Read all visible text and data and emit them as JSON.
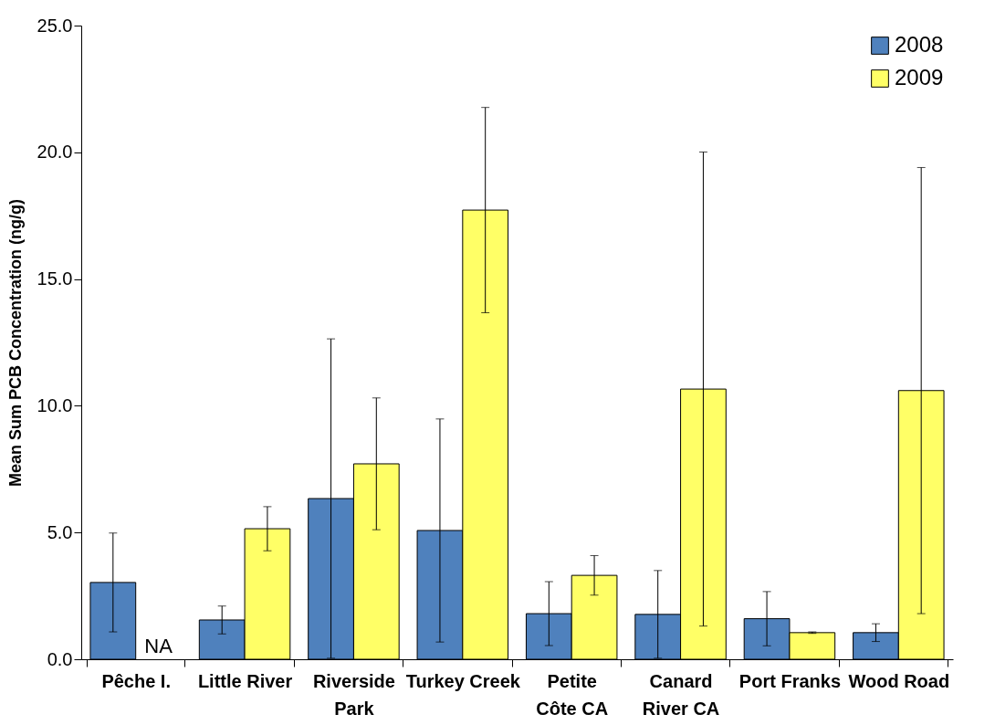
{
  "chart_data": {
    "type": "bar",
    "ylabel": "Mean Sum PCB Concentration (ng/g)",
    "categories": [
      "Pêche I.",
      "Little River",
      "Riverside Park",
      "Turkey Creek",
      "Petite Côte CA",
      "Canard River CA",
      "Port Franks",
      "Wood Road"
    ],
    "series": [
      {
        "name": "2008",
        "color": "#4f81bd",
        "values": [
          3.03,
          1.55,
          6.34,
          5.08,
          1.8,
          1.77,
          1.6,
          1.05
        ],
        "errors": [
          1.95,
          0.55,
          6.3,
          4.4,
          1.26,
          1.73,
          1.07,
          0.35
        ]
      },
      {
        "name": "2009",
        "color": "#ffff66",
        "values": [
          null,
          5.15,
          7.71,
          17.72,
          3.31,
          10.66,
          1.05,
          10.6
        ],
        "errors": [
          null,
          0.87,
          2.6,
          4.05,
          0.78,
          9.35,
          0.03,
          8.8
        ]
      }
    ],
    "ylim": [
      0,
      25
    ],
    "yticks": [
      {
        "value": 0,
        "label": "0.0"
      },
      {
        "value": 5,
        "label": "5.0"
      },
      {
        "value": 10,
        "label": "10.0"
      },
      {
        "value": 15,
        "label": "15.0"
      },
      {
        "value": 20,
        "label": "20.0"
      },
      {
        "value": 25,
        "label": "25.0"
      }
    ],
    "annotations": [
      {
        "text": "NA",
        "x": "Pêche I.",
        "y": 0
      }
    ],
    "legend": "top right",
    "grid": false
  }
}
